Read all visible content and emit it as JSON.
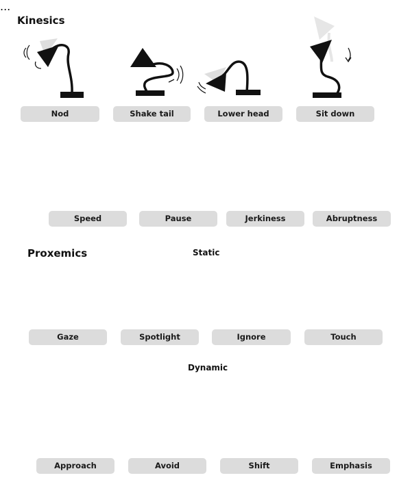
{
  "sections": {
    "kinesics": "Kinesics",
    "proxemics": "Proxemics",
    "static": "Static",
    "dynamic": "Dynamic"
  },
  "labels": {
    "nod": "Nod",
    "shake_tail": "Shake tail",
    "lower_head": "Lower head",
    "sit_down": "Sit down",
    "speed": "Speed",
    "pause": "Pause",
    "jerkiness": "Jerkiness",
    "abruptness": "Abruptness",
    "gaze": "Gaze",
    "spotlight": "Spotlight",
    "ignore": "Ignore",
    "touch": "Touch",
    "approach": "Approach",
    "avoid": "Avoid",
    "shift": "Shift",
    "emphasis": "Emphasis"
  },
  "pause_mark": "...",
  "colors": {
    "lamp": "#111111",
    "ghost": "#dedede",
    "person_red": "#e0533a",
    "person_yellow": "#f2c12e",
    "spotlight_orange": "#ef9b45",
    "light_glow": "#fbf2a6",
    "label_bg": "#dcdcdc"
  }
}
